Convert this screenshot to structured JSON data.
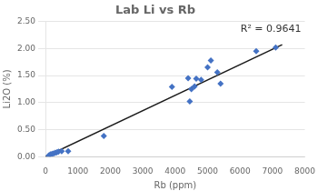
{
  "chart_data": {
    "type": "scatter",
    "title": "Lab Li vs Rb",
    "xlabel": "Rb (ppm)",
    "ylabel": "Li2O (%)",
    "annotation": "R² = 0.9641",
    "xlim": [
      0,
      8000
    ],
    "ylim": [
      0.0,
      2.5
    ],
    "xticks": [
      0,
      1000,
      2000,
      3000,
      4000,
      5000,
      6000,
      7000,
      8000
    ],
    "yticks": [
      {
        "value": 0.0,
        "label": "0.00"
      },
      {
        "value": 0.5,
        "label": "0.50"
      },
      {
        "value": 1.0,
        "label": "1.00"
      },
      {
        "value": 1.5,
        "label": "1.50"
      },
      {
        "value": 2.0,
        "label": "2.00"
      },
      {
        "value": 2.5,
        "label": "2.50"
      }
    ],
    "grid": "y",
    "series": [
      {
        "type": "scatter",
        "color": "#4472C4",
        "marker": "diamond",
        "x": [
          100,
          150,
          200,
          250,
          300,
          350,
          400,
          500,
          700,
          1800,
          3900,
          4400,
          4450,
          4500,
          4600,
          4650,
          4800,
          5000,
          5100,
          5300,
          5400,
          6500,
          7100
        ],
        "values": [
          0.02,
          0.04,
          0.05,
          0.06,
          0.07,
          0.08,
          0.09,
          0.1,
          0.1,
          0.38,
          1.29,
          1.45,
          1.02,
          1.25,
          1.3,
          1.44,
          1.42,
          1.65,
          1.78,
          1.56,
          1.35,
          1.95,
          2.02
        ]
      },
      {
        "type": "line",
        "color": "#1a1a1a",
        "line_style": "solid",
        "x": [
          0,
          7300
        ],
        "values": [
          0.0,
          2.07
        ]
      }
    ]
  }
}
